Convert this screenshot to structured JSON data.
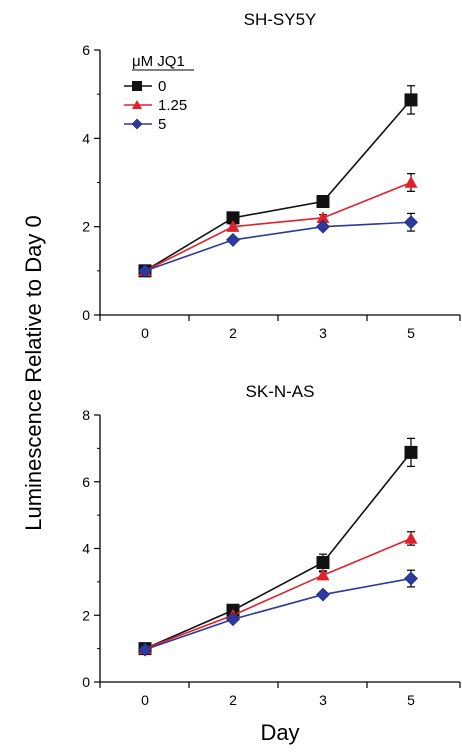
{
  "figure": {
    "ylabel": "Luminescence Relative to Day 0",
    "xlabel": "Day"
  },
  "legend": {
    "title": "μM JQ1",
    "entries": [
      "0",
      "1.25",
      "5"
    ]
  },
  "colors": {
    "series_0": "#111111",
    "series_1_25": "#e0202a",
    "series_5": "#2b3a9c"
  },
  "chart_data": [
    {
      "type": "line",
      "title": "SH-SY5Y",
      "x": [
        "0",
        "2",
        "3",
        "5"
      ],
      "ylim": [
        0,
        6
      ],
      "yticks": [
        0,
        2,
        4,
        6
      ],
      "legend_placement": "top-left",
      "series": [
        {
          "name": "0",
          "marker": "square",
          "color": "#111111",
          "values": [
            1.0,
            2.2,
            2.57,
            4.87
          ],
          "errors": [
            0.05,
            0.07,
            0.08,
            0.32
          ]
        },
        {
          "name": "1.25",
          "marker": "triangle",
          "color": "#e0202a",
          "values": [
            1.0,
            2.0,
            2.2,
            3.0
          ],
          "errors": [
            0.05,
            0.06,
            0.07,
            0.2
          ]
        },
        {
          "name": "5",
          "marker": "diamond",
          "color": "#2b3a9c",
          "values": [
            1.0,
            1.7,
            2.0,
            2.1
          ],
          "errors": [
            0.05,
            0.05,
            0.06,
            0.2
          ]
        }
      ]
    },
    {
      "type": "line",
      "title": "SK-N-AS",
      "x": [
        "0",
        "2",
        "3",
        "5"
      ],
      "ylim": [
        0,
        8
      ],
      "yticks": [
        0,
        2,
        4,
        6,
        8
      ],
      "series": [
        {
          "name": "0",
          "marker": "square",
          "color": "#111111",
          "values": [
            1.0,
            2.15,
            3.58,
            6.88
          ],
          "errors": [
            0.05,
            0.07,
            0.25,
            0.42
          ]
        },
        {
          "name": "1.25",
          "marker": "triangle",
          "color": "#e0202a",
          "values": [
            1.0,
            2.0,
            3.2,
            4.3
          ],
          "errors": [
            0.05,
            0.06,
            0.1,
            0.2
          ]
        },
        {
          "name": "5",
          "marker": "diamond",
          "color": "#2b3a9c",
          "values": [
            0.97,
            1.88,
            2.62,
            3.1
          ],
          "errors": [
            0.05,
            0.05,
            0.07,
            0.25
          ]
        }
      ]
    }
  ]
}
